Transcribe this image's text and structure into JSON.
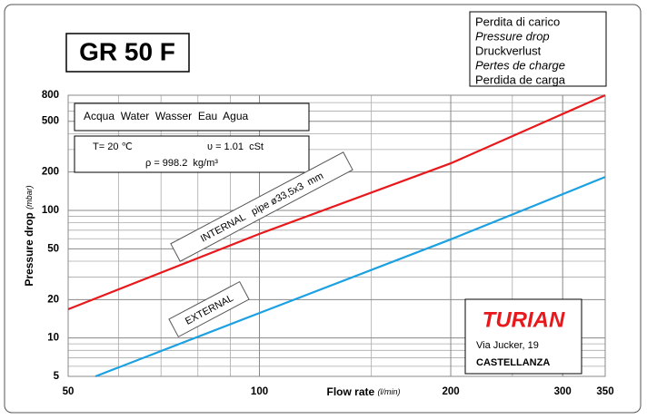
{
  "chart_data": {
    "type": "line",
    "title": "GR 50 F",
    "info": [
      "Perdita di carico",
      "Pressure drop",
      "Druckverlust",
      "Pertes de charge",
      "Perdida de carga"
    ],
    "fluid": "Acqua  Water  Wasser  Eau  Agua",
    "temperature": "T= 20 ℃",
    "viscosity": "υ = 1.01  cSt",
    "density": "ρ = 998.2  kg/m³",
    "brand": "TURIAN",
    "address": "Via Jucker, 19",
    "city": "CASTELLANZA",
    "x_label": "Flow rate",
    "x_unit": "(l/min)",
    "y_label": "Pressure drop",
    "y_unit": "(mbar)",
    "log_x": true,
    "log_y": true,
    "grid": true,
    "xlim": [
      50,
      350
    ],
    "xticks": [
      50,
      100,
      200,
      300,
      350
    ],
    "x_minor_ticks": [
      60,
      70,
      80,
      90,
      150,
      250
    ],
    "ylim": [
      5,
      800
    ],
    "yticks": [
      5,
      10,
      20,
      50,
      100,
      200,
      500,
      800
    ],
    "y_minor_ticks": [
      6,
      7,
      8,
      9,
      30,
      40,
      60,
      70,
      80,
      90,
      300,
      400,
      600,
      700
    ],
    "series": [
      {
        "name": "INTERNAL   pipe ø33,5x3  mm",
        "color": "#e8191c",
        "x": [
          50,
          100,
          200,
          350
        ],
        "values": [
          16.8,
          65.5,
          234,
          800
        ]
      },
      {
        "name": "EXTERNAL",
        "color": "#1ba1e2",
        "x": [
          55.2,
          100,
          200,
          350
        ],
        "values": [
          5,
          15.7,
          59.3,
          183
        ]
      }
    ]
  }
}
